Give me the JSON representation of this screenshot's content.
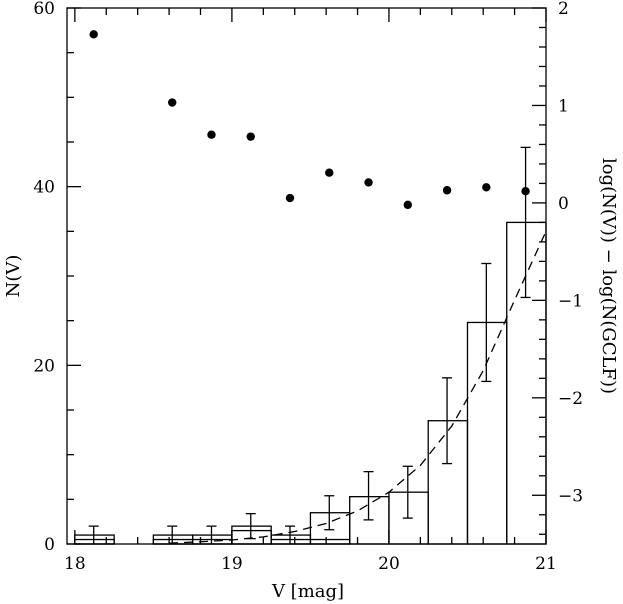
{
  "chart_data": {
    "type": "histogram+scatter",
    "xlabel": "V [mag]",
    "ylabel_left": "N(V)",
    "ylabel_right": "log(N(V)) − log(N(GCLF))",
    "xlim": [
      17.95,
      21.0
    ],
    "ylim_left": [
      0,
      60
    ],
    "ylim_right": [
      -3.5,
      2
    ],
    "x_ticks": [
      "18",
      "19",
      "20",
      "21"
    ],
    "y_left_ticks": [
      "0",
      "20",
      "40",
      "60"
    ],
    "y_right_ticks": [
      "−3",
      "−2",
      "−1",
      "0",
      "1",
      "2"
    ],
    "histogram_main": {
      "bins": [
        {
          "x0": 18.0,
          "x1": 18.25,
          "count": 1
        },
        {
          "x0": 18.25,
          "x1": 18.5,
          "count": 0
        },
        {
          "x0": 18.5,
          "x1": 18.75,
          "count": 1
        },
        {
          "x0": 18.75,
          "x1": 19.0,
          "count": 1
        },
        {
          "x0": 19.0,
          "x1": 19.25,
          "count": 2
        },
        {
          "x0": 19.25,
          "x1": 19.5,
          "count": 1
        },
        {
          "x0": 19.5,
          "x1": 19.75,
          "count": 3.5
        },
        {
          "x0": 19.75,
          "x1": 20.0,
          "count": 5.3
        },
        {
          "x0": 20.0,
          "x1": 20.25,
          "count": 5.8
        },
        {
          "x0": 20.25,
          "x1": 20.5,
          "count": 13.8
        },
        {
          "x0": 20.5,
          "x1": 20.75,
          "count": 24.8
        },
        {
          "x0": 20.75,
          "x1": 21.0,
          "count": 36.0
        }
      ],
      "error_bars": [
        {
          "x": 18.12,
          "low": 0,
          "high": 2.0
        },
        {
          "x": 18.62,
          "low": 0,
          "high": 2.0
        },
        {
          "x": 18.87,
          "low": 0,
          "high": 2.0
        },
        {
          "x": 19.12,
          "low": 0.6,
          "high": 3.4
        },
        {
          "x": 19.37,
          "low": 0,
          "high": 2.0
        },
        {
          "x": 19.62,
          "low": 1.6,
          "high": 5.4
        },
        {
          "x": 19.87,
          "low": 2.7,
          "high": 8.1
        },
        {
          "x": 20.12,
          "low": 2.9,
          "high": 8.7
        },
        {
          "x": 20.37,
          "low": 9.0,
          "high": 18.6
        },
        {
          "x": 20.62,
          "low": 18.2,
          "high": 31.4
        },
        {
          "x": 20.87,
          "low": 27.6,
          "high": 44.4
        }
      ]
    },
    "histogram_secondary": {
      "bins": [
        {
          "x0": 18.0,
          "x1": 18.25,
          "count": 0.5
        },
        {
          "x0": 18.5,
          "x1": 19.0,
          "count": 0.5
        },
        {
          "x0": 19.0,
          "x1": 19.25,
          "count": 1.5
        },
        {
          "x0": 19.25,
          "x1": 19.75,
          "count": 0.5
        }
      ]
    },
    "gclf_curve": {
      "style": "dashed",
      "x": [
        18.6,
        18.8,
        19.0,
        19.2,
        19.4,
        19.6,
        19.8,
        20.0,
        20.2,
        20.4,
        20.6,
        20.8,
        21.0
      ],
      "y": [
        0.1,
        0.25,
        0.45,
        0.8,
        1.4,
        2.3,
        3.7,
        5.8,
        8.8,
        13.2,
        19.4,
        27.3,
        35.0
      ]
    },
    "ratio_points": {
      "axis": "right",
      "x": [
        18.12,
        18.62,
        18.87,
        19.12,
        19.37,
        19.62,
        19.87,
        20.12,
        20.37,
        20.62,
        20.87
      ],
      "y": [
        1.73,
        1.03,
        0.7,
        0.68,
        0.05,
        0.31,
        0.21,
        -0.02,
        0.13,
        0.16,
        0.12
      ]
    }
  }
}
